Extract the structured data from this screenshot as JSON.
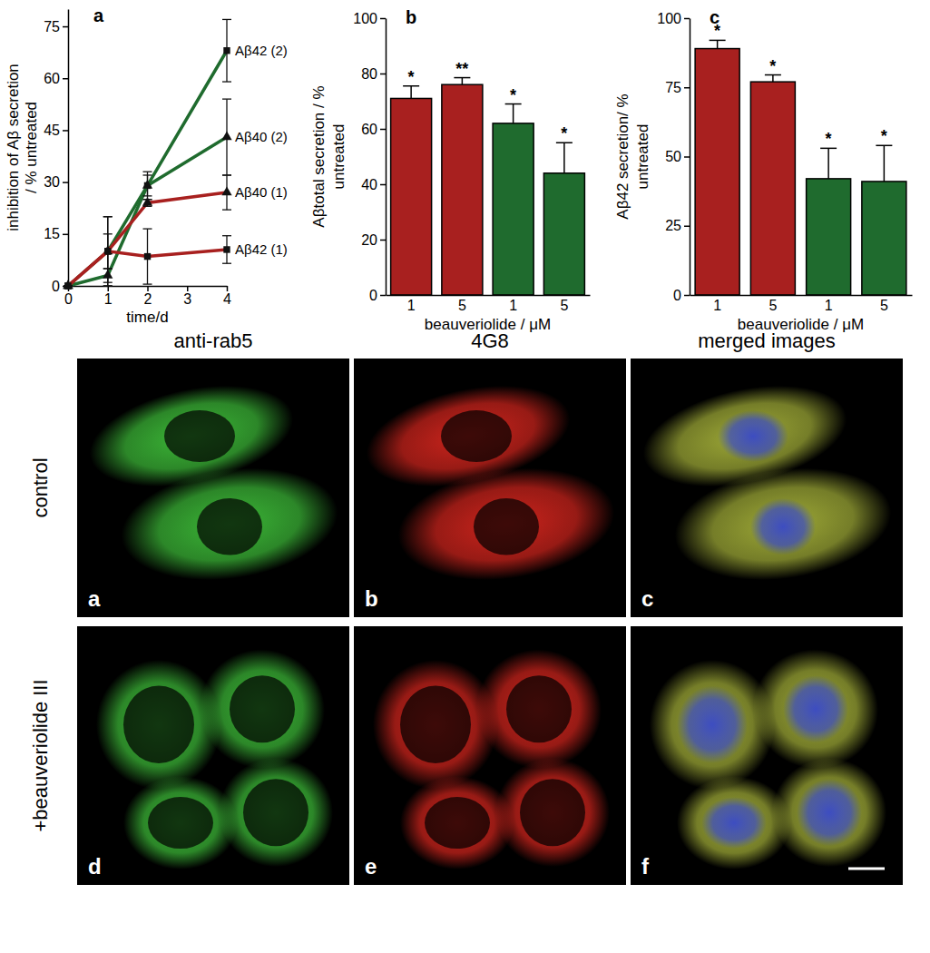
{
  "chart_data": [
    {
      "type": "line",
      "panel_label": "a",
      "x_label": "time/d",
      "y_label": [
        "inhibition of Aβ secretion",
        "/ % untreated"
      ],
      "x": [
        0,
        1,
        2,
        4
      ],
      "xlim": [
        0,
        4
      ],
      "xticks": [
        0,
        1,
        2,
        3,
        4
      ],
      "ylim": [
        0,
        80
      ],
      "yticks": [
        0,
        15,
        30,
        45,
        60,
        75
      ],
      "series": [
        {
          "name": "Aβ42 (2)",
          "color": "#1f6b2e",
          "marker": "square",
          "values": [
            0,
            10,
            29,
            68
          ],
          "errors": [
            0,
            10,
            4,
            9
          ]
        },
        {
          "name": "Aβ40 (2)",
          "color": "#1f6b2e",
          "marker": "triangle",
          "values": [
            0,
            3,
            29,
            43
          ],
          "errors": [
            0,
            2,
            3,
            11
          ]
        },
        {
          "name": "Aβ40 (1)",
          "color": "#a8201f",
          "marker": "triangle",
          "values": [
            0,
            10,
            24,
            27
          ],
          "errors": [
            0,
            10,
            1,
            5
          ]
        },
        {
          "name": "Aβ42 (1)",
          "color": "#a8201f",
          "marker": "square",
          "values": [
            0,
            10,
            8.5,
            10.5
          ],
          "errors": [
            0,
            5,
            8,
            4
          ]
        }
      ]
    },
    {
      "type": "bar",
      "panel_label": "b",
      "x_label": "beauveriolide / μM",
      "y_label": [
        "Aβtotal secretion / %",
        "untreated"
      ],
      "categories": [
        "1",
        "5",
        "1",
        "5"
      ],
      "values": [
        71,
        76,
        62,
        44
      ],
      "errors": [
        4.5,
        2.5,
        7,
        11
      ],
      "colors": [
        "#a8201f",
        "#a8201f",
        "#1f6b2e",
        "#1f6b2e"
      ],
      "significance": [
        "*",
        "**",
        "*",
        "*"
      ],
      "ylim": [
        0,
        100
      ],
      "yticks": [
        0,
        20,
        40,
        60,
        80,
        100
      ]
    },
    {
      "type": "bar",
      "panel_label": "c",
      "x_label": "beauveriolide / μM",
      "y_label": [
        "Aβ42 secretion/ %",
        "untreated"
      ],
      "categories": [
        "1",
        "5",
        "1",
        "5"
      ],
      "values": [
        89,
        77,
        42,
        41
      ],
      "errors": [
        3,
        2.5,
        11,
        13
      ],
      "colors": [
        "#a8201f",
        "#a8201f",
        "#1f6b2e",
        "#1f6b2e"
      ],
      "significance": [
        "*",
        "*",
        "*",
        "*"
      ],
      "ylim": [
        0,
        100
      ],
      "yticks": [
        0,
        25,
        50,
        75,
        100
      ]
    }
  ],
  "micrographs": {
    "column_titles": [
      "anti-rab5",
      "4G8",
      "merged images"
    ],
    "row_titles": [
      "control",
      "+beauveriolide III"
    ],
    "panel_labels": [
      [
        "a",
        "b",
        "c"
      ],
      [
        "d",
        "e",
        "f"
      ]
    ]
  }
}
